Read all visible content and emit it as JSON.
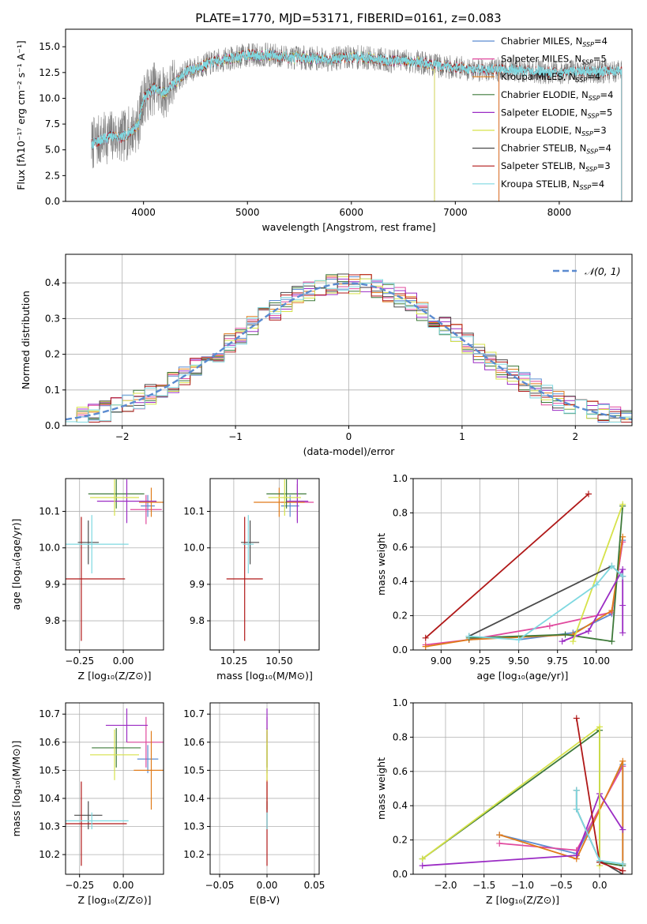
{
  "figure": {
    "title": "PLATE=1770, MJD=53171, FIBERID=0161, z=0.083"
  },
  "series_legend": [
    {
      "label": "Chabrier MILES, N_SSP=4",
      "base": "Chabrier MILES, N",
      "sub": "SSP",
      "tail": "=4",
      "color": "#5b8bd0"
    },
    {
      "label": "Salpeter MILES, N_SSP=5",
      "base": "Salpeter MILES, N",
      "sub": "SSP",
      "tail": "=5",
      "color": "#e0499e"
    },
    {
      "label": "Kroupa MILES, N_SSP=4",
      "base": "Kroupa MILES, N",
      "sub": "SSP",
      "tail": "=4",
      "color": "#e07b1a"
    },
    {
      "label": "Chabrier ELODIE, N_SSP=4",
      "base": "Chabrier ELODIE, N",
      "sub": "SSP",
      "tail": "=4",
      "color": "#3e7a3a"
    },
    {
      "label": "Salpeter ELODIE, N_SSP=5",
      "base": "Salpeter ELODIE, N",
      "sub": "SSP",
      "tail": "=5",
      "color": "#9b2cc4"
    },
    {
      "label": "Kroupa ELODIE, N_SSP=3",
      "base": "Kroupa ELODIE, N",
      "sub": "SSP",
      "tail": "=3",
      "color": "#d6e24a"
    },
    {
      "label": "Chabrier STELIB, N_SSP=4",
      "base": "Chabrier STELIB, N",
      "sub": "SSP",
      "tail": "=4",
      "color": "#4a4a4a"
    },
    {
      "label": "Salpeter STELIB, N_SSP=3",
      "base": "Salpeter STELIB, N",
      "sub": "SSP",
      "tail": "=3",
      "color": "#b01818"
    },
    {
      "label": "Kroupa STELIB, N_SSP=4",
      "base": "Kroupa STELIB, N",
      "sub": "SSP",
      "tail": "=4",
      "color": "#7ed8e0"
    }
  ],
  "chart_data": [
    {
      "type": "line",
      "xlabel": "wavelength [Angstrom, rest frame]",
      "ylabel": "Flux [fλ10⁻¹⁷ erg cm⁻² s⁻¹ A⁻¹]",
      "xlim": [
        3250,
        8700
      ],
      "ylim": [
        0,
        16.7
      ],
      "xticks": [
        4000,
        5000,
        6000,
        7000,
        8000
      ],
      "yticks": [
        0.0,
        2.5,
        5.0,
        7.5,
        10.0,
        12.5,
        15.0
      ],
      "data_trace": {
        "name": "data",
        "color": "#7f7f7f"
      },
      "spectrum_shape": {
        "wavelength": [
          3500,
          3600,
          3700,
          3800,
          3900,
          3950,
          4000,
          4100,
          4200,
          4300,
          4400,
          4600,
          4800,
          5000,
          5200,
          5400,
          5600,
          5800,
          6000,
          6200,
          6400,
          6600,
          6800,
          7000,
          7200,
          7400,
          7600,
          7800,
          8000,
          8200,
          8400
        ],
        "flux": [
          5.5,
          6.0,
          6.4,
          6.2,
          7.0,
          7.5,
          10.0,
          11.0,
          10.5,
          11.5,
          12.5,
          13.3,
          13.8,
          14.2,
          14.2,
          14.0,
          13.9,
          13.8,
          14.0,
          13.9,
          13.6,
          13.6,
          13.2,
          13.0,
          12.8,
          12.8,
          12.7,
          12.6,
          12.5,
          12.6,
          12.6
        ]
      },
      "model_curves": [
        {
          "name": "Chabrier MILES",
          "color": "#5b8bd0",
          "range": [
            3520,
            7420
          ]
        },
        {
          "name": "Salpeter MILES",
          "color": "#e0499e",
          "range": [
            3520,
            7420
          ]
        },
        {
          "name": "Kroupa MILES",
          "color": "#e07b1a",
          "range": [
            3520,
            7420
          ]
        },
        {
          "name": "Chabrier ELODIE",
          "color": "#3e7a3a",
          "range": [
            3900,
            6800
          ]
        },
        {
          "name": "Salpeter ELODIE",
          "color": "#9b2cc4",
          "range": [
            3900,
            6800
          ]
        },
        {
          "name": "Kroupa ELODIE",
          "color": "#d6e24a",
          "range": [
            3900,
            6800
          ]
        },
        {
          "name": "Chabrier STELIB",
          "color": "#4a4a4a",
          "range": [
            3500,
            8600
          ]
        },
        {
          "name": "Salpeter STELIB",
          "color": "#b01818",
          "range": [
            3500,
            8600
          ]
        },
        {
          "name": "Kroupa STELIB",
          "color": "#7ed8e0",
          "range": [
            3500,
            8600
          ]
        }
      ]
    },
    {
      "type": "histogram",
      "xlabel": "(data-model)/error",
      "ylabel": "Normed distribution",
      "xlim": [
        -2.5,
        2.5
      ],
      "ylim": [
        0,
        0.48
      ],
      "xticks": [
        -2,
        -1,
        0,
        1,
        2
      ],
      "yticks": [
        0.0,
        0.1,
        0.2,
        0.3,
        0.4
      ],
      "grid": true,
      "bin_width": 0.1,
      "reference_curve": {
        "name": "N(0,1)",
        "label": "𝒩(0, 1)",
        "mu": 0,
        "sigma": 1,
        "color": "#5b8bd0",
        "style": "dashed"
      },
      "legend_position": "upper right"
    },
    {
      "type": "errorbar",
      "xlabel": "Z [log₁₀(Z/Z⊙)]",
      "ylabel": "age  [log₁₀(age/yr)]",
      "xlim": [
        -0.33,
        0.23
      ],
      "ylim": [
        9.72,
        10.19
      ],
      "xticks": [
        -0.25,
        0.0
      ],
      "xticklabels": [
        "−0.25",
        "0.00"
      ],
      "yticks": [
        9.8,
        9.9,
        10.0,
        10.1
      ],
      "grid": true,
      "points": [
        {
          "series": "Chabrier MILES",
          "x": 0.14,
          "xerr": 0.04,
          "y": 10.115,
          "yerr": 0.03
        },
        {
          "series": "Salpeter MILES",
          "x": 0.13,
          "xerr": 0.09,
          "y": 10.105,
          "yerr": 0.04
        },
        {
          "series": "Kroupa MILES",
          "x": 0.16,
          "xerr": 0.07,
          "y": 10.125,
          "yerr": 0.04
        },
        {
          "series": "Chabrier ELODIE",
          "x": -0.04,
          "xerr": 0.16,
          "y": 10.148,
          "yerr": 0.04
        },
        {
          "series": "Salpeter ELODIE",
          "x": 0.02,
          "xerr": 0.17,
          "y": 10.128,
          "yerr": 0.06
        },
        {
          "series": "Kroupa ELODIE",
          "x": -0.05,
          "xerr": 0.14,
          "y": 10.138,
          "yerr": 0.05
        },
        {
          "series": "Chabrier STELIB",
          "x": -0.2,
          "xerr": 0.06,
          "y": 10.015,
          "yerr": 0.06
        },
        {
          "series": "Salpeter STELIB",
          "x": -0.24,
          "xerr": 0.25,
          "y": 9.915,
          "yerr": 0.17
        },
        {
          "series": "Kroupa STELIB",
          "x": -0.18,
          "xerr": 0.21,
          "y": 10.01,
          "yerr": 0.08
        }
      ]
    },
    {
      "type": "errorbar",
      "xlabel": "mass [log₁₀(M/M⊙)]",
      "ylabel": "",
      "xlim": [
        10.12,
        10.72
      ],
      "ylim": [
        9.72,
        10.19
      ],
      "xticks": [
        10.25,
        10.5
      ],
      "xticklabels": [
        "10.25",
        "10.50"
      ],
      "yticks": [
        9.8,
        9.9,
        10.0,
        10.1
      ],
      "grid": true,
      "points": [
        {
          "series": "Chabrier MILES",
          "x": 10.56,
          "xerr": 0.05,
          "y": 10.115,
          "yerr": 0.03
        },
        {
          "series": "Salpeter MILES",
          "x": 10.6,
          "xerr": 0.09,
          "y": 10.125,
          "yerr": 0.05
        },
        {
          "series": "Kroupa MILES",
          "x": 10.5,
          "xerr": 0.14,
          "y": 10.125,
          "yerr": 0.04
        },
        {
          "series": "Chabrier ELODIE",
          "x": 10.54,
          "xerr": 0.11,
          "y": 10.148,
          "yerr": 0.04
        },
        {
          "series": "Salpeter ELODIE",
          "x": 10.6,
          "xerr": 0.06,
          "y": 10.128,
          "yerr": 0.06
        },
        {
          "series": "Kroupa ELODIE",
          "x": 10.53,
          "xerr": 0.09,
          "y": 10.138,
          "yerr": 0.05
        },
        {
          "series": "Chabrier STELIB",
          "x": 10.34,
          "xerr": 0.05,
          "y": 10.015,
          "yerr": 0.06
        },
        {
          "series": "Salpeter STELIB",
          "x": 10.31,
          "xerr": 0.1,
          "y": 9.915,
          "yerr": 0.17
        },
        {
          "series": "Kroupa STELIB",
          "x": 10.33,
          "xerr": 0.03,
          "y": 10.01,
          "yerr": 0.08
        }
      ]
    },
    {
      "type": "line",
      "xlabel": "age  [log₁₀(age/yr)]",
      "ylabel": "mass weight",
      "xlim": [
        8.82,
        10.23
      ],
      "ylim": [
        0,
        1.0
      ],
      "xticks": [
        9.0,
        9.25,
        9.5,
        9.75,
        10.0
      ],
      "xticklabels": [
        "9.00",
        "9.25",
        "9.50",
        "9.75",
        "10.00"
      ],
      "yticks": [
        0.0,
        0.2,
        0.4,
        0.6,
        0.8,
        1.0
      ],
      "grid": true,
      "series": [
        {
          "name": "Chabrier MILES",
          "x": [
            9.5,
            9.85,
            10.1,
            10.17
          ],
          "y": [
            0.06,
            0.1,
            0.21,
            0.64
          ]
        },
        {
          "name": "Salpeter MILES",
          "x": [
            8.9,
            9.18,
            9.7,
            10.1,
            10.17
          ],
          "y": [
            0.03,
            0.06,
            0.14,
            0.22,
            0.63
          ]
        },
        {
          "name": "Kroupa MILES",
          "x": [
            8.9,
            9.18,
            9.85,
            10.1,
            10.17
          ],
          "y": [
            0.02,
            0.06,
            0.09,
            0.23,
            0.66
          ]
        },
        {
          "name": "Chabrier ELODIE",
          "x": [
            9.18,
            9.8,
            10.1,
            10.17
          ],
          "y": [
            0.07,
            0.09,
            0.05,
            0.84
          ]
        },
        {
          "name": "Salpeter ELODIE",
          "x": [
            9.78,
            9.95,
            10.17,
            10.17,
            10.17
          ],
          "y": [
            0.05,
            0.11,
            0.47,
            0.26,
            0.1
          ]
        },
        {
          "name": "Kroupa ELODIE",
          "x": [
            9.85,
            10.17
          ],
          "y": [
            0.05,
            0.85
          ]
        },
        {
          "name": "Chabrier STELIB",
          "x": [
            9.18,
            10.1,
            10.17
          ],
          "y": [
            0.08,
            0.49,
            0.43
          ]
        },
        {
          "name": "Salpeter STELIB",
          "x": [
            8.9,
            9.95
          ],
          "y": [
            0.07,
            0.91
          ]
        },
        {
          "name": "Kroupa STELIB",
          "x": [
            9.18,
            9.5,
            10.0,
            10.1,
            10.17
          ],
          "y": [
            0.08,
            0.06,
            0.38,
            0.49,
            0.43
          ]
        }
      ]
    },
    {
      "type": "errorbar",
      "xlabel": "Z [log₁₀(Z/Z⊙)]",
      "ylabel": "mass [log₁₀(M/M⊙)]",
      "xlim": [
        -0.33,
        0.23
      ],
      "ylim": [
        10.13,
        10.74
      ],
      "xticks": [
        -0.25,
        0.0
      ],
      "xticklabels": [
        "−0.25",
        "0.00"
      ],
      "yticks": [
        10.2,
        10.3,
        10.4,
        10.5,
        10.6,
        10.7
      ],
      "grid": true,
      "points": [
        {
          "series": "Chabrier MILES",
          "x": 0.14,
          "xerr": 0.06,
          "y": 10.54,
          "yerr": 0.05
        },
        {
          "series": "Salpeter MILES",
          "x": 0.13,
          "xerr": 0.11,
          "y": 10.6,
          "yerr": 0.09
        },
        {
          "series": "Kroupa MILES",
          "x": 0.16,
          "xerr": 0.1,
          "y": 10.5,
          "yerr": 0.14
        },
        {
          "series": "Chabrier ELODIE",
          "x": -0.04,
          "xerr": 0.14,
          "y": 10.58,
          "yerr": 0.07
        },
        {
          "series": "Salpeter ELODIE",
          "x": 0.02,
          "xerr": 0.12,
          "y": 10.66,
          "yerr": 0.06
        },
        {
          "series": "Kroupa ELODIE",
          "x": -0.05,
          "xerr": 0.14,
          "y": 10.555,
          "yerr": 0.09
        },
        {
          "series": "Chabrier STELIB",
          "x": -0.2,
          "xerr": 0.08,
          "y": 10.34,
          "yerr": 0.05
        },
        {
          "series": "Salpeter STELIB",
          "x": -0.24,
          "xerr": 0.26,
          "y": 10.31,
          "yerr": 0.15
        },
        {
          "series": "Kroupa STELIB",
          "x": -0.18,
          "xerr": 0.21,
          "y": 10.32,
          "yerr": 0.03
        }
      ]
    },
    {
      "type": "errorbar",
      "xlabel": "E(B-V)",
      "ylabel": "",
      "xlim": [
        -0.06,
        0.055
      ],
      "ylim": [
        10.13,
        10.74
      ],
      "xticks": [
        -0.05,
        0.0,
        0.05
      ],
      "xticklabels": [
        "−0.05",
        "0.00",
        "0.05"
      ],
      "yticks": [
        10.2,
        10.3,
        10.4,
        10.5,
        10.6,
        10.7
      ],
      "grid": true,
      "points": [
        {
          "series": "Chabrier MILES",
          "x": 0.0,
          "xerr": 0.0,
          "y": 10.54,
          "yerr": 0.05
        },
        {
          "series": "Salpeter MILES",
          "x": 0.0,
          "xerr": 0.0,
          "y": 10.6,
          "yerr": 0.09
        },
        {
          "series": "Kroupa MILES",
          "x": 0.0,
          "xerr": 0.0,
          "y": 10.5,
          "yerr": 0.14
        },
        {
          "series": "Chabrier ELODIE",
          "x": 0.0,
          "xerr": 0.0,
          "y": 10.58,
          "yerr": 0.07
        },
        {
          "series": "Salpeter ELODIE",
          "x": 0.0,
          "xerr": 0.0,
          "y": 10.66,
          "yerr": 0.06
        },
        {
          "series": "Kroupa ELODIE",
          "x": 0.0,
          "xerr": 0.0,
          "y": 10.555,
          "yerr": 0.09
        },
        {
          "series": "Chabrier STELIB",
          "x": 0.0,
          "xerr": 0.0,
          "y": 10.34,
          "yerr": 0.05
        },
        {
          "series": "Salpeter STELIB",
          "x": 0.0,
          "xerr": 0.0,
          "y": 10.31,
          "yerr": 0.15
        },
        {
          "series": "Kroupa STELIB",
          "x": 0.0,
          "xerr": 0.0,
          "y": 10.32,
          "yerr": 0.03
        }
      ]
    },
    {
      "type": "line",
      "xlabel": "Z [log₁₀(Z/Z⊙)]",
      "ylabel": "mass weight",
      "xlim": [
        -2.42,
        0.42
      ],
      "ylim": [
        0,
        1.0
      ],
      "xticks": [
        -2.0,
        -1.5,
        -1.0,
        -0.5,
        0.0
      ],
      "xticklabels": [
        "−2.0",
        "−1.5",
        "−1.0",
        "−0.5",
        "0.0"
      ],
      "yticks": [
        0.0,
        0.2,
        0.4,
        0.6,
        0.8,
        1.0
      ],
      "grid": true,
      "series": [
        {
          "name": "Chabrier MILES",
          "x": [
            -1.3,
            -0.3,
            0.3,
            0.3
          ],
          "y": [
            0.23,
            0.12,
            0.64,
            0.06
          ]
        },
        {
          "name": "Salpeter MILES",
          "x": [
            -1.3,
            -0.3,
            0.3
          ],
          "y": [
            0.18,
            0.14,
            0.63
          ]
        },
        {
          "name": "Kroupa MILES",
          "x": [
            -1.3,
            -0.3,
            0.3,
            0.3
          ],
          "y": [
            0.23,
            0.09,
            0.66,
            0.06
          ]
        },
        {
          "name": "Chabrier ELODIE",
          "x": [
            -2.3,
            0.0,
            0.0,
            0.3
          ],
          "y": [
            0.09,
            0.84,
            0.07,
            0.05
          ]
        },
        {
          "name": "Salpeter ELODIE",
          "x": [
            -2.3,
            -0.3,
            0.0,
            0.3
          ],
          "y": [
            0.05,
            0.11,
            0.47,
            0.26
          ]
        },
        {
          "name": "Kroupa ELODIE",
          "x": [
            -2.3,
            0.0,
            0.0
          ],
          "y": [
            0.09,
            0.86,
            0.05
          ]
        },
        {
          "name": "Chabrier STELIB",
          "x": [
            -0.3,
            -0.3,
            0.0,
            0.3
          ],
          "y": [
            0.49,
            0.38,
            0.08,
            0.0
          ]
        },
        {
          "name": "Salpeter STELIB",
          "x": [
            -0.3,
            0.0,
            0.3
          ],
          "y": [
            0.91,
            0.07,
            0.02
          ]
        },
        {
          "name": "Kroupa STELIB",
          "x": [
            -0.3,
            -0.3,
            0.0,
            0.3
          ],
          "y": [
            0.49,
            0.38,
            0.08,
            0.06
          ]
        }
      ]
    }
  ]
}
